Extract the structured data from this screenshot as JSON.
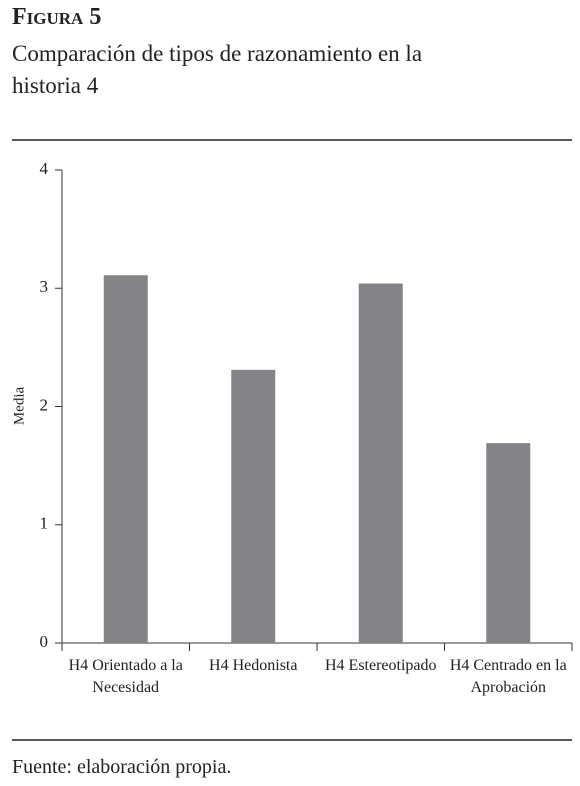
{
  "figure_label": "Figura 5",
  "source": "Fuente: elaboración propia.",
  "chart_data": {
    "type": "bar",
    "title": "Comparación de tipos de razonamiento en la historia 4",
    "y_label": "Media",
    "categories": [
      "H4 Orientado a la Necesidad",
      "H4 Hedonista",
      "H4 Estereotipado",
      "H4 Centrado en la Aprobación"
    ],
    "values": [
      3.11,
      2.31,
      3.04,
      1.69
    ],
    "color": "#848387",
    "ylim": [
      0,
      4
    ],
    "yticks": [
      0,
      1,
      2,
      3,
      4
    ],
    "grid": false
  }
}
